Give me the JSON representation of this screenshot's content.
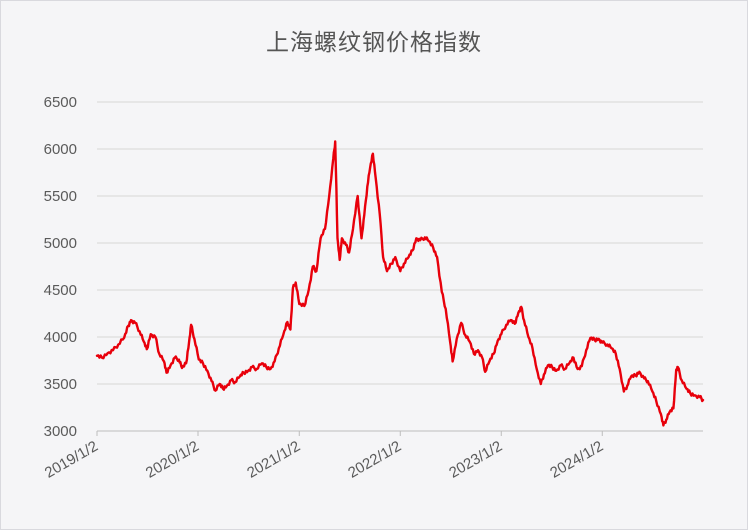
{
  "chart_data": {
    "type": "line",
    "title": "上海螺纹钢价格指数",
    "xlabel": "",
    "ylabel": "",
    "ylim": [
      3000,
      6500
    ],
    "yticks": [
      3000,
      3500,
      4000,
      4500,
      5000,
      5500,
      6000,
      6500
    ],
    "xlim": [
      "2019-01-02",
      "2024-12-31"
    ],
    "xticks": [
      {
        "label": "2019/1/2",
        "date": "2019-01-02"
      },
      {
        "label": "2020/1/2",
        "date": "2020-01-02"
      },
      {
        "label": "2021/1/2",
        "date": "2021-01-02"
      },
      {
        "label": "2022/1/2",
        "date": "2022-01-02"
      },
      {
        "label": "2023/1/2",
        "date": "2023-01-02"
      },
      {
        "label": "2024/1/2",
        "date": "2024-01-02"
      }
    ],
    "grid": true,
    "legend": "none",
    "line_color": "#e8000b",
    "series": [
      {
        "values": [
          [
            "2019-01-02",
            3800
          ],
          [
            "2019-01-20",
            3780
          ],
          [
            "2019-02-10",
            3830
          ],
          [
            "2019-03-01",
            3860
          ],
          [
            "2019-03-20",
            3920
          ],
          [
            "2019-04-10",
            3990
          ],
          [
            "2019-04-25",
            4120
          ],
          [
            "2019-05-05",
            4180
          ],
          [
            "2019-05-20",
            4150
          ],
          [
            "2019-06-05",
            4060
          ],
          [
            "2019-06-20",
            3950
          ],
          [
            "2019-07-01",
            3870
          ],
          [
            "2019-07-15",
            4030
          ],
          [
            "2019-08-01",
            4000
          ],
          [
            "2019-08-15",
            3820
          ],
          [
            "2019-09-01",
            3740
          ],
          [
            "2019-09-10",
            3620
          ],
          [
            "2019-09-25",
            3700
          ],
          [
            "2019-10-10",
            3780
          ],
          [
            "2019-10-25",
            3760
          ],
          [
            "2019-11-05",
            3670
          ],
          [
            "2019-11-20",
            3720
          ],
          [
            "2019-12-01",
            3950
          ],
          [
            "2019-12-08",
            4130
          ],
          [
            "2019-12-20",
            3980
          ],
          [
            "2020-01-05",
            3760
          ],
          [
            "2020-01-20",
            3720
          ],
          [
            "2020-02-05",
            3640
          ],
          [
            "2020-02-20",
            3530
          ],
          [
            "2020-03-05",
            3430
          ],
          [
            "2020-03-20",
            3500
          ],
          [
            "2020-04-01",
            3450
          ],
          [
            "2020-04-15",
            3480
          ],
          [
            "2020-05-01",
            3540
          ],
          [
            "2020-05-15",
            3520
          ],
          [
            "2020-06-01",
            3580
          ],
          [
            "2020-06-15",
            3620
          ],
          [
            "2020-07-01",
            3640
          ],
          [
            "2020-07-15",
            3680
          ],
          [
            "2020-08-01",
            3660
          ],
          [
            "2020-08-20",
            3720
          ],
          [
            "2020-09-05",
            3680
          ],
          [
            "2020-09-20",
            3660
          ],
          [
            "2020-10-05",
            3740
          ],
          [
            "2020-10-20",
            3880
          ],
          [
            "2020-11-05",
            4020
          ],
          [
            "2020-11-20",
            4160
          ],
          [
            "2020-12-01",
            4080
          ],
          [
            "2020-12-10",
            4520
          ],
          [
            "2020-12-20",
            4580
          ],
          [
            "2021-01-02",
            4350
          ],
          [
            "2021-01-20",
            4330
          ],
          [
            "2021-02-05",
            4500
          ],
          [
            "2021-02-20",
            4750
          ],
          [
            "2021-03-05",
            4700
          ],
          [
            "2021-03-20",
            5050
          ],
          [
            "2021-04-05",
            5150
          ],
          [
            "2021-04-20",
            5500
          ],
          [
            "2021-05-05",
            5900
          ],
          [
            "2021-05-12",
            6080
          ],
          [
            "2021-05-20",
            5050
          ],
          [
            "2021-05-28",
            4820
          ],
          [
            "2021-06-05",
            5050
          ],
          [
            "2021-06-20",
            4980
          ],
          [
            "2021-07-01",
            4900
          ],
          [
            "2021-07-15",
            5150
          ],
          [
            "2021-08-01",
            5500
          ],
          [
            "2021-08-15",
            5050
          ],
          [
            "2021-08-25",
            5300
          ],
          [
            "2021-09-05",
            5600
          ],
          [
            "2021-09-15",
            5800
          ],
          [
            "2021-09-25",
            5950
          ],
          [
            "2021-10-05",
            5700
          ],
          [
            "2021-10-20",
            5300
          ],
          [
            "2021-11-01",
            4850
          ],
          [
            "2021-11-15",
            4700
          ],
          [
            "2021-12-01",
            4780
          ],
          [
            "2021-12-15",
            4850
          ],
          [
            "2022-01-02",
            4700
          ],
          [
            "2022-01-15",
            4780
          ],
          [
            "2022-02-01",
            4850
          ],
          [
            "2022-02-15",
            4920
          ],
          [
            "2022-03-01",
            5050
          ],
          [
            "2022-03-15",
            5030
          ],
          [
            "2022-04-01",
            5060
          ],
          [
            "2022-04-15",
            5020
          ],
          [
            "2022-05-01",
            4950
          ],
          [
            "2022-05-15",
            4850
          ],
          [
            "2022-06-01",
            4480
          ],
          [
            "2022-06-15",
            4300
          ],
          [
            "2022-07-01",
            3950
          ],
          [
            "2022-07-10",
            3740
          ],
          [
            "2022-07-25",
            3980
          ],
          [
            "2022-08-10",
            4150
          ],
          [
            "2022-08-25",
            4020
          ],
          [
            "2022-09-10",
            3950
          ],
          [
            "2022-09-25",
            3820
          ],
          [
            "2022-10-10",
            3860
          ],
          [
            "2022-10-25",
            3780
          ],
          [
            "2022-11-05",
            3630
          ],
          [
            "2022-11-20",
            3740
          ],
          [
            "2022-12-05",
            3820
          ],
          [
            "2022-12-20",
            3960
          ],
          [
            "2023-01-02",
            4030
          ],
          [
            "2023-01-20",
            4130
          ],
          [
            "2023-02-05",
            4180
          ],
          [
            "2023-02-20",
            4140
          ],
          [
            "2023-03-05",
            4260
          ],
          [
            "2023-03-15",
            4320
          ],
          [
            "2023-03-25",
            4180
          ],
          [
            "2023-04-10",
            4000
          ],
          [
            "2023-04-25",
            3880
          ],
          [
            "2023-05-10",
            3660
          ],
          [
            "2023-05-25",
            3500
          ],
          [
            "2023-06-05",
            3600
          ],
          [
            "2023-06-20",
            3700
          ],
          [
            "2023-07-05",
            3680
          ],
          [
            "2023-07-20",
            3640
          ],
          [
            "2023-08-05",
            3700
          ],
          [
            "2023-08-20",
            3660
          ],
          [
            "2023-09-05",
            3720
          ],
          [
            "2023-09-20",
            3780
          ],
          [
            "2023-10-05",
            3660
          ],
          [
            "2023-10-20",
            3690
          ],
          [
            "2023-11-05",
            3860
          ],
          [
            "2023-11-20",
            3990
          ],
          [
            "2023-12-05",
            3970
          ],
          [
            "2023-12-20",
            3980
          ],
          [
            "2024-01-02",
            3940
          ],
          [
            "2024-01-20",
            3920
          ],
          [
            "2024-02-05",
            3880
          ],
          [
            "2024-02-20",
            3820
          ],
          [
            "2024-03-05",
            3660
          ],
          [
            "2024-03-20",
            3420
          ],
          [
            "2024-04-01",
            3480
          ],
          [
            "2024-04-15",
            3580
          ],
          [
            "2024-05-01",
            3590
          ],
          [
            "2024-05-15",
            3630
          ],
          [
            "2024-06-01",
            3560
          ],
          [
            "2024-06-15",
            3530
          ],
          [
            "2024-07-01",
            3420
          ],
          [
            "2024-07-15",
            3320
          ],
          [
            "2024-08-01",
            3180
          ],
          [
            "2024-08-10",
            3060
          ],
          [
            "2024-08-20",
            3120
          ],
          [
            "2024-09-01",
            3200
          ],
          [
            "2024-09-15",
            3240
          ],
          [
            "2024-09-25",
            3650
          ],
          [
            "2024-10-01",
            3680
          ],
          [
            "2024-10-15",
            3540
          ],
          [
            "2024-11-01",
            3450
          ],
          [
            "2024-11-15",
            3400
          ],
          [
            "2024-12-01",
            3380
          ],
          [
            "2024-12-20",
            3360
          ],
          [
            "2024-12-31",
            3330
          ]
        ]
      }
    ]
  }
}
